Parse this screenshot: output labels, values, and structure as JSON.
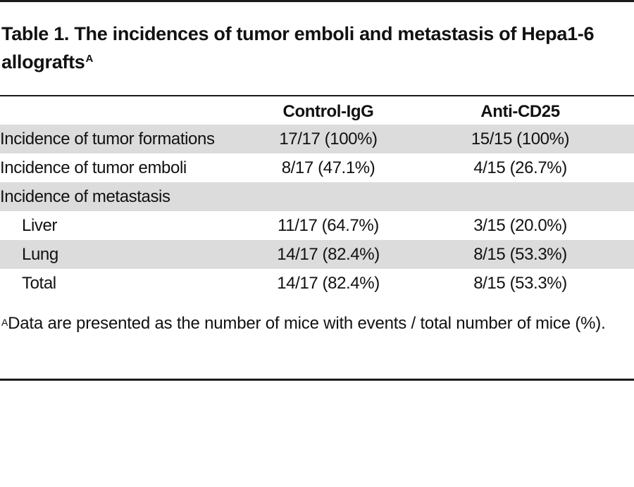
{
  "title": {
    "text": "Table 1. The incidences of tumor emboli and metastasis of Hepa1-6 allografts",
    "footnote_marker": "A"
  },
  "table": {
    "columns": [
      "",
      "Control-IgG",
      "Anti-CD25"
    ],
    "rows": [
      {
        "label": "Incidence of tumor formations",
        "values": [
          "17/17 (100%)",
          "15/15 (100%)"
        ],
        "indent": false,
        "shaded": true
      },
      {
        "label": "Incidence of tumor emboli",
        "values": [
          "8/17 (47.1%)",
          "4/15 (26.7%)"
        ],
        "indent": false,
        "shaded": false
      },
      {
        "label": "Incidence of metastasis",
        "values": [
          "",
          ""
        ],
        "indent": false,
        "shaded": true
      },
      {
        "label": "Liver",
        "values": [
          "11/17 (64.7%)",
          "3/15 (20.0%)"
        ],
        "indent": true,
        "shaded": false
      },
      {
        "label": "Lung",
        "values": [
          "14/17 (82.4%)",
          "8/15 (53.3%)"
        ],
        "indent": true,
        "shaded": true
      },
      {
        "label": "Total",
        "values": [
          "14/17 (82.4%)",
          "8/15 (53.3%)"
        ],
        "indent": true,
        "shaded": false
      }
    ]
  },
  "footnote": {
    "marker": "A",
    "text": "Data are presented as the number of mice with events / total number of mice (%)."
  }
}
